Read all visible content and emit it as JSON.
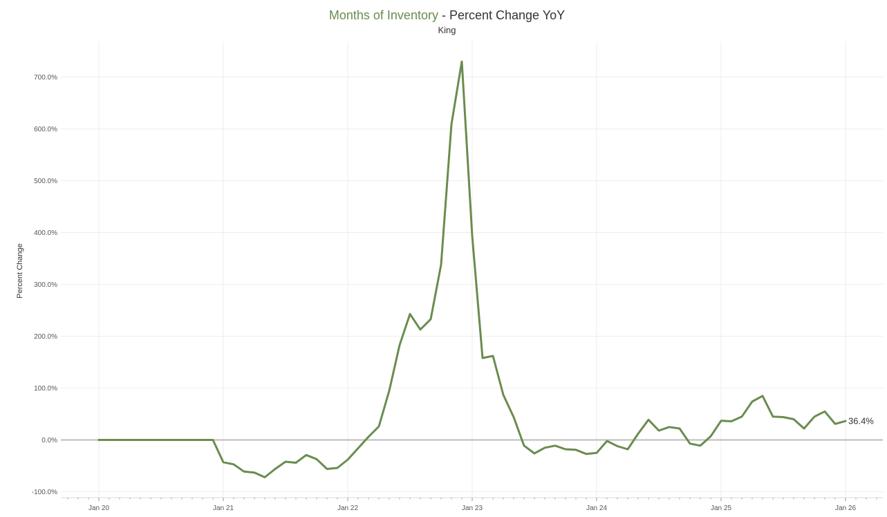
{
  "title": {
    "highlight": "Months of Inventory",
    "rest": " - Percent Change YoY",
    "highlight_color": "#6a8c4e"
  },
  "subtitle": "King",
  "chart_data": {
    "type": "line",
    "title": "Months of Inventory - Percent Change YoY",
    "subtitle": "King",
    "xlabel": "",
    "ylabel": "Percent Change",
    "x_ticks": [
      "Jan 20",
      "Jan 21",
      "Jan 22",
      "Jan 23",
      "Jan 24",
      "Jan 25",
      "Jan 26"
    ],
    "y_ticks": [
      -100,
      0,
      100,
      200,
      300,
      400,
      500,
      600,
      700
    ],
    "y_tick_format": "percent_1dp",
    "ylim": [
      -110,
      770
    ],
    "xlim": [
      "2019-10",
      "2026-04"
    ],
    "grid": true,
    "zero_line": true,
    "series": [
      {
        "color": "#6a8c4e",
        "end_label": "36.4%",
        "x": [
          "2020-01",
          "2020-02",
          "2020-03",
          "2020-04",
          "2020-05",
          "2020-06",
          "2020-07",
          "2020-08",
          "2020-09",
          "2020-10",
          "2020-11",
          "2020-12",
          "2021-01",
          "2021-02",
          "2021-03",
          "2021-04",
          "2021-05",
          "2021-06",
          "2021-07",
          "2021-08",
          "2021-09",
          "2021-10",
          "2021-11",
          "2021-12",
          "2022-01",
          "2022-02",
          "2022-03",
          "2022-04",
          "2022-05",
          "2022-06",
          "2022-07",
          "2022-08",
          "2022-09",
          "2022-10",
          "2022-11",
          "2022-12",
          "2023-01",
          "2023-02",
          "2023-03",
          "2023-04",
          "2023-05",
          "2023-06",
          "2023-07",
          "2023-08",
          "2023-09",
          "2023-10",
          "2023-11",
          "2023-12",
          "2024-01",
          "2024-02",
          "2024-03",
          "2024-04",
          "2024-05",
          "2024-06",
          "2024-07",
          "2024-08",
          "2024-09",
          "2024-10",
          "2024-11",
          "2024-12",
          "2025-01",
          "2025-02",
          "2025-03",
          "2025-04",
          "2025-05",
          "2025-06",
          "2025-07",
          "2025-08",
          "2025-09",
          "2025-10",
          "2025-11",
          "2025-12",
          "2026-01"
        ],
        "values": [
          0,
          0,
          0,
          0,
          0,
          0,
          0,
          0,
          0,
          0,
          0,
          0,
          -43,
          -47,
          -61,
          -63,
          -72,
          -56,
          -42,
          -44,
          -29,
          -37,
          -56,
          -54,
          -38,
          -16,
          6,
          26,
          95,
          183,
          243,
          213,
          233,
          338,
          609,
          730,
          394,
          158,
          162,
          87,
          44,
          -11,
          -26,
          -15,
          -11,
          -18,
          -19,
          -27,
          -25,
          -2,
          -12,
          -18,
          12,
          39,
          18,
          25,
          22,
          -7,
          -11,
          7,
          37,
          36,
          45,
          74,
          85,
          45,
          44,
          40,
          22,
          45,
          55,
          31,
          36.4
        ]
      }
    ]
  }
}
